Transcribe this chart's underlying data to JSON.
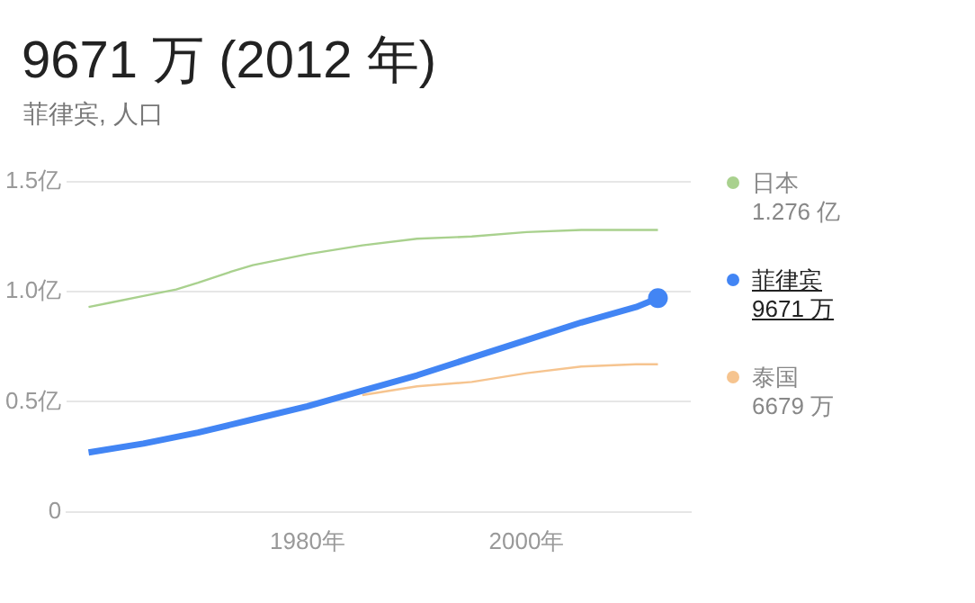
{
  "chart_data": {
    "type": "line",
    "title": "9671 万 (2012 年)",
    "subtitle": "菲律宾, 人口",
    "xlim": [
      1958,
      2015
    ],
    "xticks": [
      {
        "value": 1980,
        "label": "1980年"
      },
      {
        "value": 2000,
        "label": "2000年"
      }
    ],
    "ylim": [
      0,
      1.5
    ],
    "yticks": [
      {
        "value": 0,
        "label": "0"
      },
      {
        "value": 0.5,
        "label": "0.5亿"
      },
      {
        "value": 1,
        "label": "1.0亿"
      },
      {
        "value": 1.5,
        "label": "1.5亿"
      }
    ],
    "grid": "y",
    "legend": "right",
    "series": [
      {
        "name": "日本",
        "color": "#a9d18e",
        "x": [
          1960,
          1962,
          1965,
          1968,
          1970,
          1973,
          1975,
          1980,
          1985,
          1990,
          1995,
          2000,
          2005,
          2010,
          2012
        ],
        "values": [
          0.93,
          0.95,
          0.98,
          1.01,
          1.04,
          1.09,
          1.12,
          1.17,
          1.21,
          1.24,
          1.25,
          1.27,
          1.28,
          1.28,
          1.28
        ]
      },
      {
        "name": "菲律宾",
        "color": "#4285f4",
        "x": [
          1960,
          1965,
          1970,
          1975,
          1980,
          1985,
          1990,
          1995,
          2000,
          2005,
          2010,
          2012
        ],
        "values": [
          0.27,
          0.31,
          0.36,
          0.42,
          0.48,
          0.55,
          0.62,
          0.7,
          0.78,
          0.86,
          0.93,
          0.97
        ]
      },
      {
        "type": "scatter",
        "color": "#4285f4",
        "marker": "circle",
        "x": [
          2012
        ],
        "values": [
          0.97
        ]
      },
      {
        "name": "泰国",
        "color": "#f6c48f",
        "x": [
          1985,
          1990,
          1995,
          2000,
          2005,
          2010,
          2012
        ],
        "values": [
          0.53,
          0.57,
          0.59,
          0.63,
          0.66,
          0.67,
          0.67
        ]
      }
    ],
    "annotations": [
      "1.276 亿",
      "9671 万",
      "6679 万"
    ]
  }
}
